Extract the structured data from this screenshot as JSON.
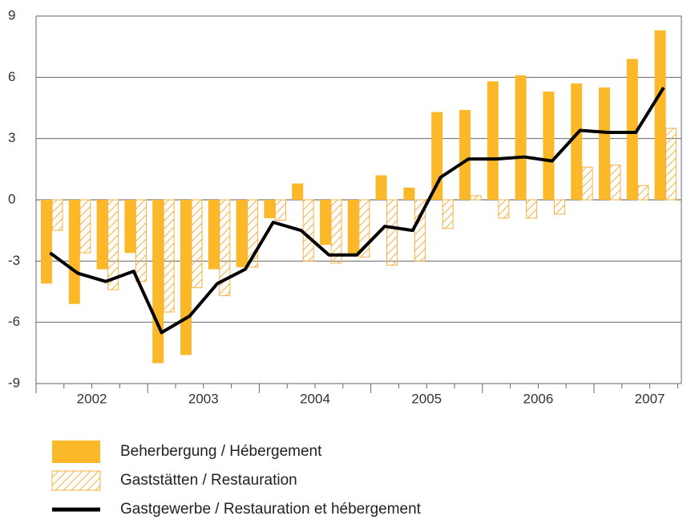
{
  "chart_data": {
    "type": "bar_line",
    "categories": [
      null,
      null,
      null,
      null,
      null,
      null,
      null,
      null,
      null,
      null,
      null,
      null,
      null,
      null,
      null,
      null,
      null,
      null,
      null,
      null,
      null,
      null,
      null
    ],
    "years": [
      "2002",
      "2003",
      "2004",
      "2005",
      "2006",
      "2007"
    ],
    "series": [
      {
        "name": "Beherbergung / Hébergement",
        "kind": "bar",
        "color": "#fbb829",
        "values": [
          -4.1,
          -5.1,
          -3.4,
          -2.6,
          -8.0,
          -7.6,
          -3.4,
          -3.3,
          -0.9,
          0.8,
          -2.2,
          -2.7,
          1.2,
          0.6,
          4.3,
          4.4,
          5.8,
          6.1,
          5.3,
          5.7,
          5.5,
          6.9,
          8.3
        ]
      },
      {
        "name": "Gaststätten / Restauration",
        "kind": "hatched",
        "color": "#f7b040",
        "values": [
          -1.5,
          -2.6,
          -4.4,
          -4.0,
          -5.5,
          -4.3,
          -4.7,
          -3.3,
          -1.0,
          -3.0,
          -3.1,
          -2.8,
          -3.2,
          -3.0,
          -1.4,
          0.2,
          -0.9,
          -0.9,
          -0.7,
          1.6,
          1.7,
          0.7,
          3.5
        ]
      },
      {
        "name": "Gastgewerbe / Restauration et hébergement",
        "kind": "line",
        "color": "#000000",
        "values": [
          -2.6,
          -3.6,
          -4.0,
          -3.5,
          -6.5,
          -5.7,
          -4.1,
          -3.4,
          -1.1,
          -1.5,
          -2.7,
          -2.7,
          -1.3,
          -1.5,
          1.1,
          2.0,
          2.0,
          2.1,
          1.9,
          3.4,
          3.3,
          3.3,
          5.5
        ]
      }
    ],
    "ylim": [
      -9,
      9
    ],
    "yticks": [
      -9,
      -6,
      -3,
      0,
      3,
      6,
      9
    ],
    "grid": true
  }
}
